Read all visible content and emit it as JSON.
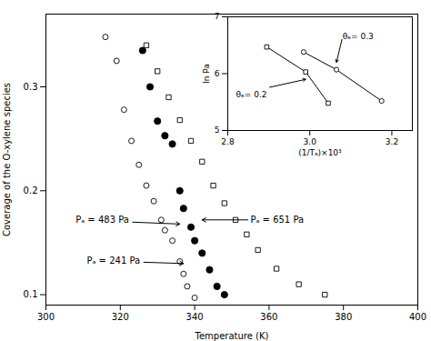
{
  "chart_data": [
    {
      "type": "scatter",
      "xlabel": "Temperature (K)",
      "ylabel": "Coverage of the O-xylene species",
      "xlim": [
        300,
        400
      ],
      "ylim": [
        0.09,
        0.37
      ],
      "xticks": [
        300,
        320,
        340,
        360,
        380,
        400
      ],
      "yticks": [
        0.1,
        0.2,
        0.3
      ],
      "series": [
        {
          "x": [
            316,
            319,
            321,
            323,
            325,
            327,
            329,
            331,
            332,
            334,
            336,
            337,
            338,
            340
          ],
          "values": [
            0.348,
            0.325,
            0.278,
            0.248,
            0.225,
            0.205,
            0.19,
            0.172,
            0.162,
            0.152,
            0.132,
            0.12,
            0.108,
            0.097
          ],
          "color": "black",
          "marker": "open_circle"
        },
        {
          "x": [
            326,
            328,
            330,
            332,
            334,
            336,
            337,
            339,
            340,
            342,
            344,
            346,
            348
          ],
          "values": [
            0.335,
            0.3,
            0.267,
            0.253,
            0.245,
            0.2,
            0.183,
            0.165,
            0.152,
            0.14,
            0.124,
            0.108,
            0.1
          ],
          "color": "black",
          "marker": "filled_circle"
        },
        {
          "x": [
            327,
            330,
            333,
            336,
            339,
            342,
            345,
            348,
            351,
            354,
            357,
            362,
            368,
            375
          ],
          "values": [
            0.34,
            0.315,
            0.29,
            0.268,
            0.248,
            0.228,
            0.205,
            0.188,
            0.172,
            0.158,
            0.143,
            0.125,
            0.11,
            0.1
          ],
          "color": "black",
          "marker": "open_square"
        }
      ],
      "annotations": [
        {
          "text": "Pₐ = 483 Pa",
          "x": 336,
          "y": 0.168,
          "text_x": 308,
          "text_y": 0.172
        },
        {
          "text": "Pₐ = 241 Pa",
          "x": 337,
          "y": 0.13,
          "text_x": 311,
          "text_y": 0.133
        },
        {
          "text": "Pₐ = 651 Pa",
          "x": 342,
          "y": 0.172,
          "text_x": 355,
          "text_y": 0.172
        }
      ]
    },
    {
      "type": "line",
      "xlabel": "(1/Tₐ)×10³",
      "ylabel": "ln Pa",
      "xlim": [
        2.8,
        3.25
      ],
      "ylim": [
        5.0,
        7.0
      ],
      "xticks": [
        2.8,
        {
          "value": 3.0,
          "label": "3.0"
        },
        3.2
      ],
      "yticks": [
        5,
        6,
        7
      ],
      "series": [
        {
          "x": [
            2.895,
            2.99,
            3.045
          ],
          "values": [
            6.47,
            6.03,
            5.48
          ],
          "color": "black",
          "marker": "open_square"
        },
        {
          "x": [
            2.985,
            3.065,
            3.175
          ],
          "values": [
            6.38,
            6.07,
            5.52
          ],
          "color": "black",
          "marker": "open_circle"
        }
      ],
      "annotations": [
        {
          "text": "θₑ= 0.3",
          "x": 3.065,
          "y": 6.2,
          "text_x": 3.08,
          "text_y": 6.65
        },
        {
          "text": "θₑ= 0.2",
          "x": 2.99,
          "y": 5.9,
          "text_x": 2.82,
          "text_y": 5.63
        }
      ]
    }
  ]
}
